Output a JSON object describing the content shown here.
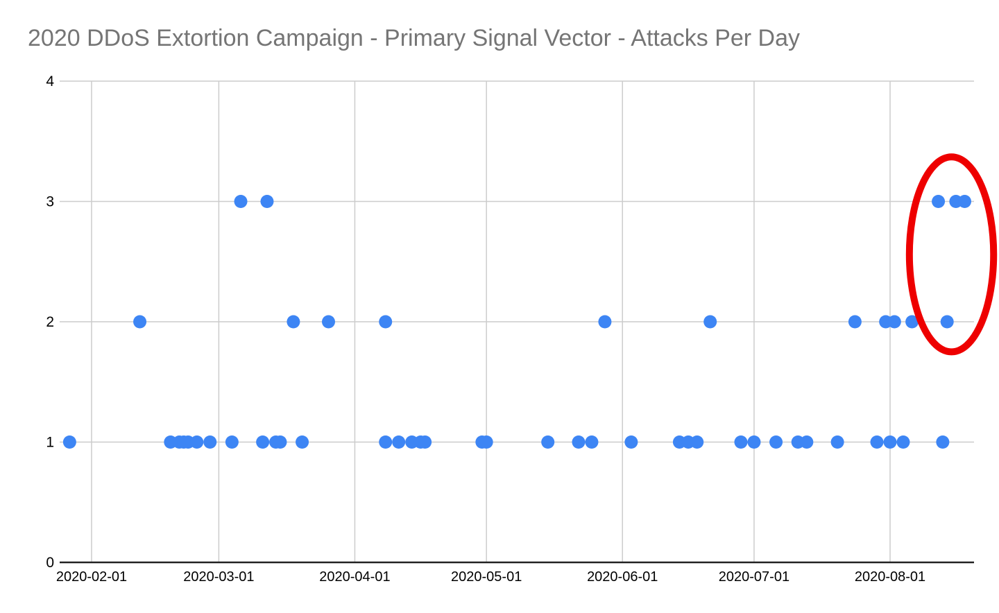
{
  "title": "2020 DDoS Extortion Campaign - Primary Signal Vector - Attacks Per Day",
  "colors": {
    "background": "#ffffff",
    "title_text": "#757575",
    "tick_text": "#000000",
    "gridline": "#cccccc",
    "axis_line": "#222222",
    "point": "#3d85f4",
    "annotation": "#ee0000"
  },
  "chart_data": {
    "type": "scatter",
    "title": "2020 DDoS Extortion Campaign - Primary Signal Vector - Attacks Per Day",
    "xlabel": "",
    "ylabel": "",
    "x_axis": {
      "type": "date",
      "tick_labels": [
        "2020-02-01",
        "2020-03-01",
        "2020-04-01",
        "2020-05-01",
        "2020-06-01",
        "2020-07-01",
        "2020-08-01"
      ],
      "range": [
        "2020-01-25",
        "2020-08-20"
      ],
      "grid": true
    },
    "y_axis": {
      "tick_labels": [
        "0",
        "1",
        "2",
        "3",
        "4"
      ],
      "range": [
        0,
        4
      ],
      "grid": true
    },
    "legend": "none",
    "points": [
      {
        "date": "2020-01-27",
        "attacks": 1
      },
      {
        "date": "2020-02-12",
        "attacks": 2
      },
      {
        "date": "2020-02-19",
        "attacks": 1
      },
      {
        "date": "2020-02-21",
        "attacks": 1
      },
      {
        "date": "2020-02-22",
        "attacks": 1
      },
      {
        "date": "2020-02-23",
        "attacks": 1
      },
      {
        "date": "2020-02-25",
        "attacks": 1
      },
      {
        "date": "2020-02-28",
        "attacks": 1
      },
      {
        "date": "2020-03-04",
        "attacks": 1
      },
      {
        "date": "2020-03-06",
        "attacks": 3
      },
      {
        "date": "2020-03-11",
        "attacks": 1
      },
      {
        "date": "2020-03-12",
        "attacks": 3
      },
      {
        "date": "2020-03-14",
        "attacks": 1
      },
      {
        "date": "2020-03-15",
        "attacks": 1
      },
      {
        "date": "2020-03-18",
        "attacks": 2
      },
      {
        "date": "2020-03-20",
        "attacks": 1
      },
      {
        "date": "2020-03-26",
        "attacks": 2
      },
      {
        "date": "2020-04-08",
        "attacks": 2
      },
      {
        "date": "2020-04-08",
        "attacks": 1
      },
      {
        "date": "2020-04-11",
        "attacks": 1
      },
      {
        "date": "2020-04-14",
        "attacks": 1
      },
      {
        "date": "2020-04-16",
        "attacks": 1
      },
      {
        "date": "2020-04-17",
        "attacks": 1
      },
      {
        "date": "2020-04-30",
        "attacks": 1
      },
      {
        "date": "2020-05-01",
        "attacks": 1
      },
      {
        "date": "2020-05-15",
        "attacks": 1
      },
      {
        "date": "2020-05-22",
        "attacks": 1
      },
      {
        "date": "2020-05-25",
        "attacks": 1
      },
      {
        "date": "2020-05-28",
        "attacks": 2
      },
      {
        "date": "2020-06-03",
        "attacks": 1
      },
      {
        "date": "2020-06-14",
        "attacks": 1
      },
      {
        "date": "2020-06-16",
        "attacks": 1
      },
      {
        "date": "2020-06-18",
        "attacks": 1
      },
      {
        "date": "2020-06-21",
        "attacks": 2
      },
      {
        "date": "2020-06-28",
        "attacks": 1
      },
      {
        "date": "2020-07-01",
        "attacks": 1
      },
      {
        "date": "2020-07-06",
        "attacks": 1
      },
      {
        "date": "2020-07-11",
        "attacks": 1
      },
      {
        "date": "2020-07-13",
        "attacks": 1
      },
      {
        "date": "2020-07-20",
        "attacks": 1
      },
      {
        "date": "2020-07-24",
        "attacks": 2
      },
      {
        "date": "2020-07-29",
        "attacks": 1
      },
      {
        "date": "2020-07-31",
        "attacks": 2
      },
      {
        "date": "2020-08-01",
        "attacks": 1
      },
      {
        "date": "2020-08-02",
        "attacks": 2
      },
      {
        "date": "2020-08-04",
        "attacks": 1
      },
      {
        "date": "2020-08-06",
        "attacks": 2
      },
      {
        "date": "2020-08-12",
        "attacks": 3
      },
      {
        "date": "2020-08-13",
        "attacks": 1
      },
      {
        "date": "2020-08-14",
        "attacks": 2
      },
      {
        "date": "2020-08-16",
        "attacks": 3
      },
      {
        "date": "2020-08-18",
        "attacks": 3
      }
    ],
    "annotation": {
      "shape": "ellipse",
      "color": "#ee0000",
      "stroke_width": 10,
      "center_date": "2020-08-15",
      "center_value": 2.56,
      "radius_days": 9.6,
      "radius_value": 0.81
    }
  }
}
